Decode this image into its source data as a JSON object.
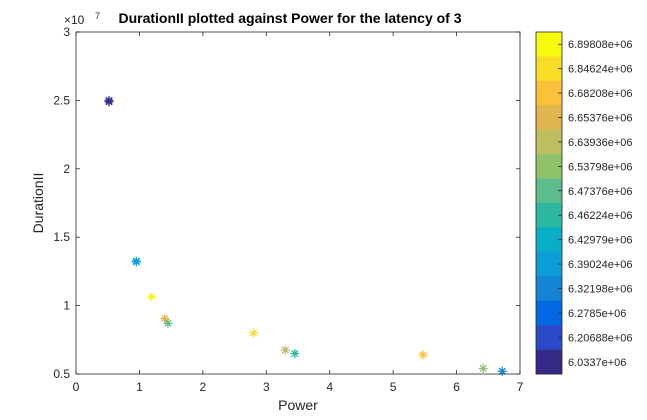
{
  "chart_data": {
    "type": "scatter",
    "title": "DurationII plotted against Power for the latency of 3",
    "xlabel": "Power",
    "ylabel": "DurationII",
    "xlim": [
      0,
      7
    ],
    "ylim": [
      5000000,
      30000000
    ],
    "x_ticks": [
      0,
      1,
      2,
      3,
      4,
      5,
      6,
      7
    ],
    "y_ticks": [
      5000000,
      10000000,
      15000000,
      20000000,
      25000000,
      30000000
    ],
    "y_tick_labels": [
      "0.5",
      "1",
      "1.5",
      "2",
      "2.5",
      "3"
    ],
    "y_exponent": "×10",
    "y_exponent_power": "7",
    "grid": false,
    "marker": "asterisk",
    "colorbar": {
      "labels": [
        "6.89808e+06",
        "6.84624e+06",
        "6.68208e+06",
        "6.65376e+06",
        "6.63936e+06",
        "6.53798e+06",
        "6.47376e+06",
        "6.46224e+06",
        "6.42979e+06",
        "6.39024e+06",
        "6.32198e+06",
        "6.2785e+06",
        "6.20688e+06",
        "6.0337e+06"
      ],
      "colors": [
        "#f9fb0e",
        "#f8dd27",
        "#fdc03a",
        "#e0b64f",
        "#bebe5f",
        "#8fc26b",
        "#5dbc8c",
        "#2cb7a3",
        "#08aec7",
        "#0d9dd8",
        "#1485d4",
        "#0268e1",
        "#2a4aca",
        "#352a87"
      ]
    },
    "points": [
      {
        "x": 0.52,
        "y": 25000000,
        "color": "#2a4aca"
      },
      {
        "x": 0.52,
        "y": 24900000,
        "color": "#352a87"
      },
      {
        "x": 0.95,
        "y": 13250000,
        "color": "#08aec7"
      },
      {
        "x": 0.95,
        "y": 13200000,
        "color": "#0d9dd8"
      },
      {
        "x": 1.19,
        "y": 10650000,
        "color": "#f9fb0e"
      },
      {
        "x": 1.4,
        "y": 9050000,
        "color": "#e0b64f"
      },
      {
        "x": 1.45,
        "y": 8700000,
        "color": "#5dbc8c"
      },
      {
        "x": 2.8,
        "y": 8000000,
        "color": "#f8dd27"
      },
      {
        "x": 3.3,
        "y": 6750000,
        "color": "#bebe5f"
      },
      {
        "x": 3.45,
        "y": 6500000,
        "color": "#2cb7a3"
      },
      {
        "x": 5.47,
        "y": 6400000,
        "color": "#fdc03a"
      },
      {
        "x": 6.42,
        "y": 5400000,
        "color": "#8fc26b"
      },
      {
        "x": 6.72,
        "y": 5200000,
        "color": "#1485d4"
      }
    ]
  }
}
